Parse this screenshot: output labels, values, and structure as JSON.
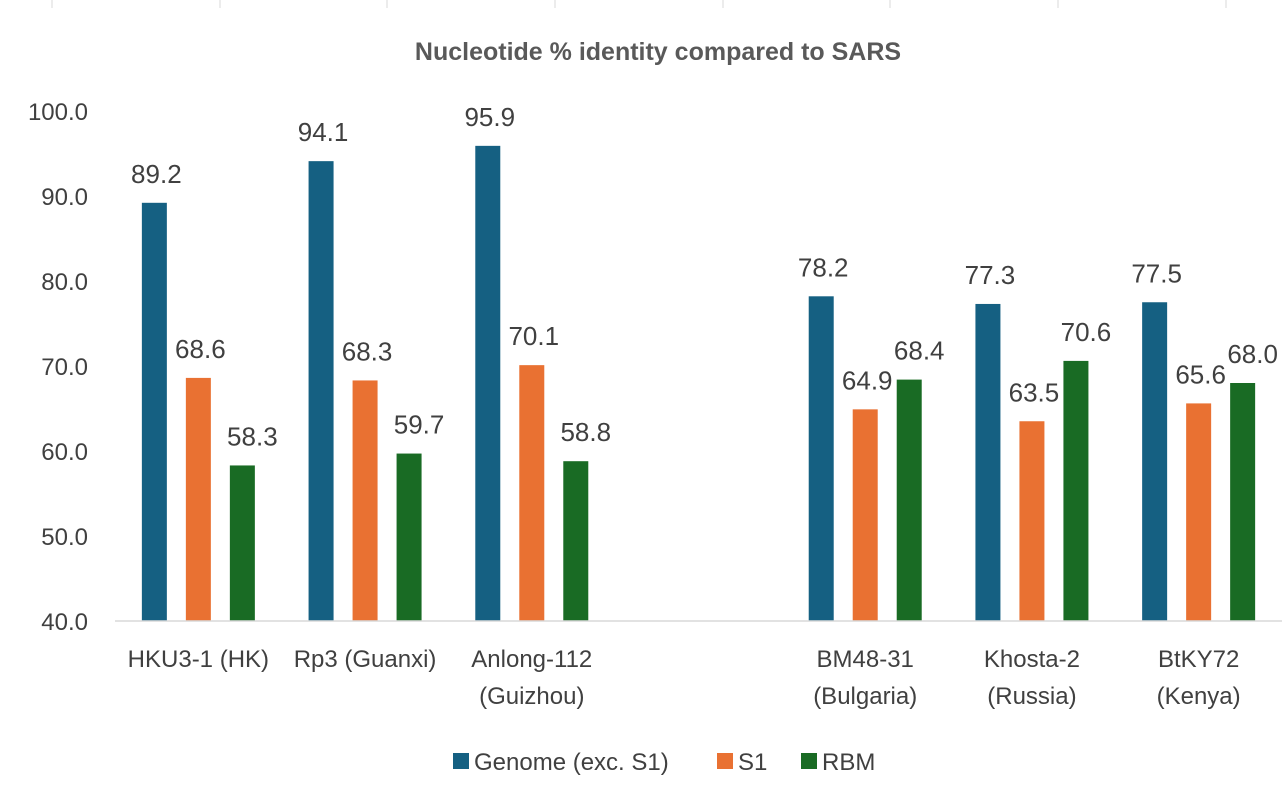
{
  "chart_data": {
    "type": "bar",
    "title": "Nucleotide % identity compared to SARS",
    "categories": [
      [
        "HKU3-1 (HK)"
      ],
      [
        "Rp3 (Guanxi)"
      ],
      [
        "Anlong-112",
        "(Guizhou)"
      ],
      [
        ""
      ],
      [
        "BM48-31",
        "(Bulgaria)"
      ],
      [
        "Khosta-2",
        "(Russia)"
      ],
      [
        "BtKY72",
        "(Kenya)"
      ]
    ],
    "series": [
      {
        "name": "Genome (exc. S1)",
        "color": "#156082",
        "values": [
          89.2,
          94.1,
          95.9,
          null,
          78.2,
          77.3,
          77.5
        ],
        "labels": [
          "89.2",
          "94.1",
          "95.9",
          "",
          "78.2",
          "77.3",
          "77.5"
        ]
      },
      {
        "name": "S1",
        "color": "#E97132",
        "values": [
          68.6,
          68.3,
          70.1,
          null,
          64.9,
          63.5,
          65.6
        ],
        "labels": [
          "68.6",
          "68.3",
          "70.1",
          "",
          "64.9",
          "63.5",
          "65.6"
        ]
      },
      {
        "name": "RBM",
        "color": "#196B24",
        "values": [
          58.3,
          59.7,
          58.8,
          null,
          68.4,
          70.6,
          68.0
        ],
        "labels": [
          "58.3",
          "59.7",
          "58.8",
          "",
          "68.4",
          "70.6",
          "68.0"
        ]
      }
    ],
    "ylim": [
      40,
      100
    ],
    "yticks": [
      "40.0",
      "50.0",
      "60.0",
      "70.0",
      "80.0",
      "90.0",
      "100.0"
    ],
    "xlabel": "",
    "ylabel": "",
    "grid": true,
    "legend": "bottom"
  }
}
